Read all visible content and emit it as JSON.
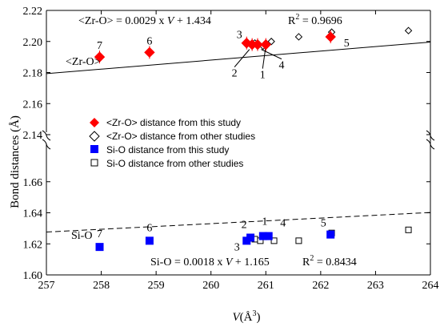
{
  "chart_data": {
    "type": "scatter",
    "xlabel_var": "V",
    "xlabel_unit": "(Å",
    "xlabel_sup": "3",
    "xlabel_close": ")",
    "ylabel": "Bond distances (Å)",
    "xlim": [
      257,
      264
    ],
    "xticks": [
      "257",
      "258",
      "259",
      "260",
      "261",
      "262",
      "263",
      "264"
    ],
    "upper_panel": {
      "ylim": [
        2.14,
        2.22
      ],
      "yticks": [
        "2.14",
        "2.16",
        "2.18",
        "2.20",
        "2.22"
      ],
      "series_this_study": [
        {
          "label": "1",
          "x": 261.0,
          "y": 2.198
        },
        {
          "label": "2",
          "x": 260.75,
          "y": 2.198
        },
        {
          "label": "3",
          "x": 260.65,
          "y": 2.199
        },
        {
          "label": "4",
          "x": 260.85,
          "y": 2.198
        },
        {
          "label": "5",
          "x": 262.18,
          "y": 2.203
        },
        {
          "label": "6",
          "x": 258.88,
          "y": 2.193
        },
        {
          "label": "7",
          "x": 257.97,
          "y": 2.19
        }
      ],
      "series_other_studies": [
        {
          "x": 260.65,
          "y": 2.198
        },
        {
          "x": 260.8,
          "y": 2.199
        },
        {
          "x": 260.95,
          "y": 2.197
        },
        {
          "x": 261.1,
          "y": 2.2
        },
        {
          "x": 261.6,
          "y": 2.203
        },
        {
          "x": 262.2,
          "y": 2.206
        },
        {
          "x": 263.6,
          "y": 2.207
        }
      ],
      "fit": {
        "slope": 0.0029,
        "intercept": 1.434
      }
    },
    "lower_panel": {
      "ylim": [
        1.6,
        1.68
      ],
      "yticks": [
        "1.60",
        "1.62",
        "1.64",
        "1.66"
      ],
      "series_this_study": [
        {
          "label": "1",
          "x": 260.95,
          "y": 1.625
        },
        {
          "label": "2",
          "x": 260.72,
          "y": 1.624
        },
        {
          "label": "3",
          "x": 260.65,
          "y": 1.622
        },
        {
          "label": "4",
          "x": 261.05,
          "y": 1.625
        },
        {
          "label": "5",
          "x": 262.18,
          "y": 1.626
        },
        {
          "label": "6",
          "x": 258.88,
          "y": 1.622
        },
        {
          "label": "7",
          "x": 257.97,
          "y": 1.618
        }
      ],
      "series_other_studies": [
        {
          "x": 260.8,
          "y": 1.623
        },
        {
          "x": 260.9,
          "y": 1.622
        },
        {
          "x": 261.15,
          "y": 1.622
        },
        {
          "x": 261.6,
          "y": 1.622
        },
        {
          "x": 262.2,
          "y": 1.627
        },
        {
          "x": 263.6,
          "y": 1.629
        }
      ],
      "fit": {
        "slope": 0.0018,
        "intercept": 1.165
      }
    },
    "annotations": {
      "zr_eqn_prefix": "<Zr-O> = 0.0029 x ",
      "zr_eqn_var": "V",
      "zr_eqn_suffix": " + 1.434",
      "zr_r2_prefix": "R",
      "zr_r2_sup": "2",
      "zr_r2_value": " = 0.9696",
      "zr_series_label": "<Zr-O>",
      "si_eqn_prefix": "Si-O = 0.0018 x ",
      "si_eqn_var": "V",
      "si_eqn_suffix": " + 1.165",
      "si_r2_prefix": "R",
      "si_r2_sup": "2",
      "si_r2_value": " = 0.8434",
      "si_series_label": "Si-O"
    },
    "legend": [
      {
        "label": "<Zr-O> distance from this study",
        "marker": "filled-diamond",
        "color": "#ff0000"
      },
      {
        "label": "<Zr-O> distance from other studies",
        "marker": "open-diamond",
        "color": "#000000"
      },
      {
        "label": "Si-O distance from this study",
        "marker": "filled-square",
        "color": "#0000ff"
      },
      {
        "label": "Si-O distance from other studies",
        "marker": "open-square",
        "color": "#000000"
      }
    ],
    "colors": {
      "zr_this": "#ff0000",
      "si_this": "#0000ff",
      "other": "#000000"
    }
  }
}
